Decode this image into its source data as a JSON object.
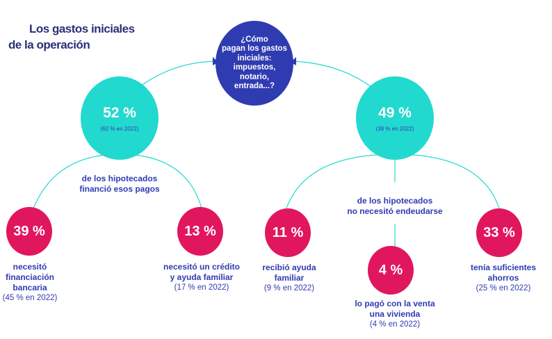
{
  "title": {
    "line1": "Los gastos iniciales",
    "line2": "de la operación"
  },
  "question": {
    "lines": [
      "¿Cómo",
      "pagan los gastos",
      "iniciales:",
      "impuestos,",
      "notario,",
      "entrada...?"
    ]
  },
  "branches": [
    {
      "value": "52 %",
      "previous": "(62 % en 2022)",
      "caption": [
        "de los hipotecados",
        "financió esos pagos"
      ]
    },
    {
      "value": "49 %",
      "previous": "(38 % en 2022)",
      "caption": [
        "de los hipotecados",
        "no necesitó endeudarse"
      ]
    }
  ],
  "leaves": [
    {
      "value": "39 %",
      "label": [
        "necesitó",
        "financiación",
        "bancaria"
      ],
      "previous": "(45 % en 2022)"
    },
    {
      "value": "13 %",
      "label": [
        "necesitó un crédito",
        "y ayuda familiar"
      ],
      "previous": "(17 % en 2022)"
    },
    {
      "value": "11 %",
      "label": [
        "recibió ayuda",
        "familiar"
      ],
      "previous": "(9 % en 2022)"
    },
    {
      "value": "4 %",
      "label": [
        "lo pagó con la venta",
        "una vivienda"
      ],
      "previous": "(4 % en 2022)"
    },
    {
      "value": "33 %",
      "label": [
        "tenía suficientes",
        "ahorros"
      ],
      "previous": "(25 % en 2022)"
    }
  ],
  "colors": {
    "question": "#2f3bb1",
    "branch": "#22d9cf",
    "leaf": "#e1175d",
    "text": "#2f3bb1",
    "line": "#22d9cf"
  }
}
